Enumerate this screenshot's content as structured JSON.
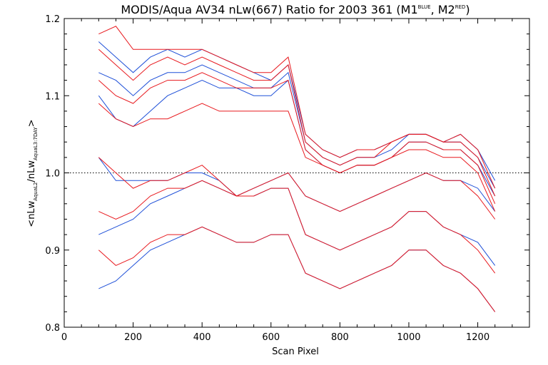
{
  "chart_data": {
    "type": "line",
    "title": "MODIS/Aqua AV34 nLw(667) Ratio for 2003 361 (M1BLUE, M2RED)",
    "title_parts": {
      "main": "MODIS/Aqua AV34 nLw(667) Ratio for 2003 361 (M1",
      "sup1": "BLUE",
      "mid": ", M2",
      "sup2": "RED",
      "end": ")"
    },
    "xlabel": "Scan Pixel",
    "ylabel": "<nLwAquaL2/nLwAquaL3:7DAY>",
    "ylabel_parts": {
      "open": "<nLw",
      "sub1": "AquaL2",
      "mid": "/nLw",
      "sub2": "AquaL3:7DAY",
      "close": ">"
    },
    "xlim": [
      0,
      1350
    ],
    "ylim": [
      0.8,
      1.2
    ],
    "x_ticks": [
      0,
      200,
      400,
      600,
      800,
      1000,
      1200
    ],
    "x_tick_labels": [
      "0",
      "200",
      "400",
      "600",
      "800",
      "1000",
      "1200"
    ],
    "y_ticks": [
      0.8,
      0.9,
      1.0,
      1.1,
      1.2
    ],
    "y_tick_labels": [
      "0.8",
      "0.9",
      "1.0",
      "1.1",
      "1.2"
    ],
    "reference_line": 1.0,
    "grid": false,
    "x": [
      100,
      150,
      200,
      250,
      300,
      350,
      400,
      450,
      500,
      550,
      600,
      650,
      700,
      750,
      800,
      850,
      900,
      950,
      1000,
      1050,
      1100,
      1150,
      1200,
      1250
    ],
    "series": [
      {
        "color": "#1f50d8",
        "values": [
          1.17,
          1.15,
          1.13,
          1.15,
          1.16,
          1.15,
          1.16,
          1.15,
          1.14,
          1.13,
          1.12,
          1.14,
          1.05,
          1.03,
          1.02,
          1.03,
          1.03,
          1.04,
          1.05,
          1.05,
          1.04,
          1.05,
          1.03,
          0.99
        ]
      },
      {
        "color": "#1f50d8",
        "values": [
          1.13,
          1.12,
          1.1,
          1.12,
          1.13,
          1.13,
          1.14,
          1.13,
          1.12,
          1.11,
          1.11,
          1.13,
          1.04,
          1.02,
          1.01,
          1.02,
          1.02,
          1.03,
          1.05,
          1.05,
          1.04,
          1.04,
          1.02,
          0.98
        ]
      },
      {
        "color": "#1f50d8",
        "values": [
          1.1,
          1.07,
          1.06,
          1.08,
          1.1,
          1.11,
          1.12,
          1.11,
          1.11,
          1.1,
          1.1,
          1.12,
          1.03,
          1.01,
          1.0,
          1.01,
          1.01,
          1.02,
          1.04,
          1.04,
          1.03,
          1.03,
          1.01,
          0.97
        ]
      },
      {
        "color": "#1f50d8",
        "values": [
          1.02,
          0.99,
          0.99,
          0.99,
          0.99,
          1.0,
          1.0,
          0.99,
          0.97,
          0.98,
          0.99,
          1.0,
          0.97,
          0.96,
          0.95,
          0.96,
          0.97,
          0.98,
          0.99,
          1.0,
          0.99,
          0.99,
          0.98,
          0.95
        ]
      },
      {
        "color": "#1f50d8",
        "values": [
          0.92,
          0.93,
          0.94,
          0.96,
          0.97,
          0.98,
          0.99,
          0.98,
          0.97,
          0.97,
          0.98,
          0.98,
          0.92,
          0.91,
          0.9,
          0.91,
          0.92,
          0.93,
          0.95,
          0.95,
          0.93,
          0.92,
          0.91,
          0.88
        ]
      },
      {
        "color": "#1f50d8",
        "values": [
          0.85,
          0.86,
          0.88,
          0.9,
          0.91,
          0.92,
          0.93,
          0.92,
          0.91,
          0.91,
          0.92,
          0.92,
          0.87,
          0.86,
          0.85,
          0.86,
          0.87,
          0.88,
          0.9,
          0.9,
          0.88,
          0.87,
          0.85,
          0.82
        ]
      },
      {
        "color": "#e8191e",
        "values": [
          1.18,
          1.19,
          1.16,
          1.16,
          1.16,
          1.16,
          1.16,
          1.15,
          1.14,
          1.13,
          1.13,
          1.15,
          1.05,
          1.03,
          1.02,
          1.03,
          1.03,
          1.04,
          1.05,
          1.05,
          1.04,
          1.05,
          1.03,
          0.98
        ]
      },
      {
        "color": "#e8191e",
        "values": [
          1.16,
          1.14,
          1.12,
          1.14,
          1.15,
          1.14,
          1.15,
          1.14,
          1.13,
          1.12,
          1.12,
          1.14,
          1.04,
          1.02,
          1.01,
          1.02,
          1.02,
          1.04,
          1.05,
          1.05,
          1.04,
          1.04,
          1.02,
          0.97
        ]
      },
      {
        "color": "#e8191e",
        "values": [
          1.12,
          1.1,
          1.09,
          1.11,
          1.12,
          1.12,
          1.13,
          1.12,
          1.11,
          1.11,
          1.11,
          1.12,
          1.03,
          1.01,
          1.0,
          1.01,
          1.01,
          1.02,
          1.04,
          1.04,
          1.03,
          1.03,
          1.01,
          0.96
        ]
      },
      {
        "color": "#e8191e",
        "values": [
          1.09,
          1.07,
          1.06,
          1.07,
          1.07,
          1.08,
          1.09,
          1.08,
          1.08,
          1.08,
          1.08,
          1.08,
          1.02,
          1.01,
          1.0,
          1.01,
          1.01,
          1.02,
          1.03,
          1.03,
          1.02,
          1.02,
          1.0,
          0.95
        ]
      },
      {
        "color": "#e8191e",
        "values": [
          1.02,
          1.0,
          0.98,
          0.99,
          0.99,
          1.0,
          1.01,
          0.99,
          0.97,
          0.98,
          0.99,
          1.0,
          0.97,
          0.96,
          0.95,
          0.96,
          0.97,
          0.98,
          0.99,
          1.0,
          0.99,
          0.99,
          0.97,
          0.94
        ]
      },
      {
        "color": "#e8191e",
        "values": [
          0.95,
          0.94,
          0.95,
          0.97,
          0.98,
          0.98,
          0.99,
          0.98,
          0.97,
          0.97,
          0.98,
          0.98,
          0.92,
          0.91,
          0.9,
          0.91,
          0.92,
          0.93,
          0.95,
          0.95,
          0.93,
          0.92,
          0.9,
          0.87
        ]
      },
      {
        "color": "#e8191e",
        "values": [
          0.9,
          0.88,
          0.89,
          0.91,
          0.92,
          0.92,
          0.93,
          0.92,
          0.91,
          0.91,
          0.92,
          0.92,
          0.87,
          0.86,
          0.85,
          0.86,
          0.87,
          0.88,
          0.9,
          0.9,
          0.88,
          0.87,
          0.85,
          0.82
        ]
      }
    ]
  }
}
